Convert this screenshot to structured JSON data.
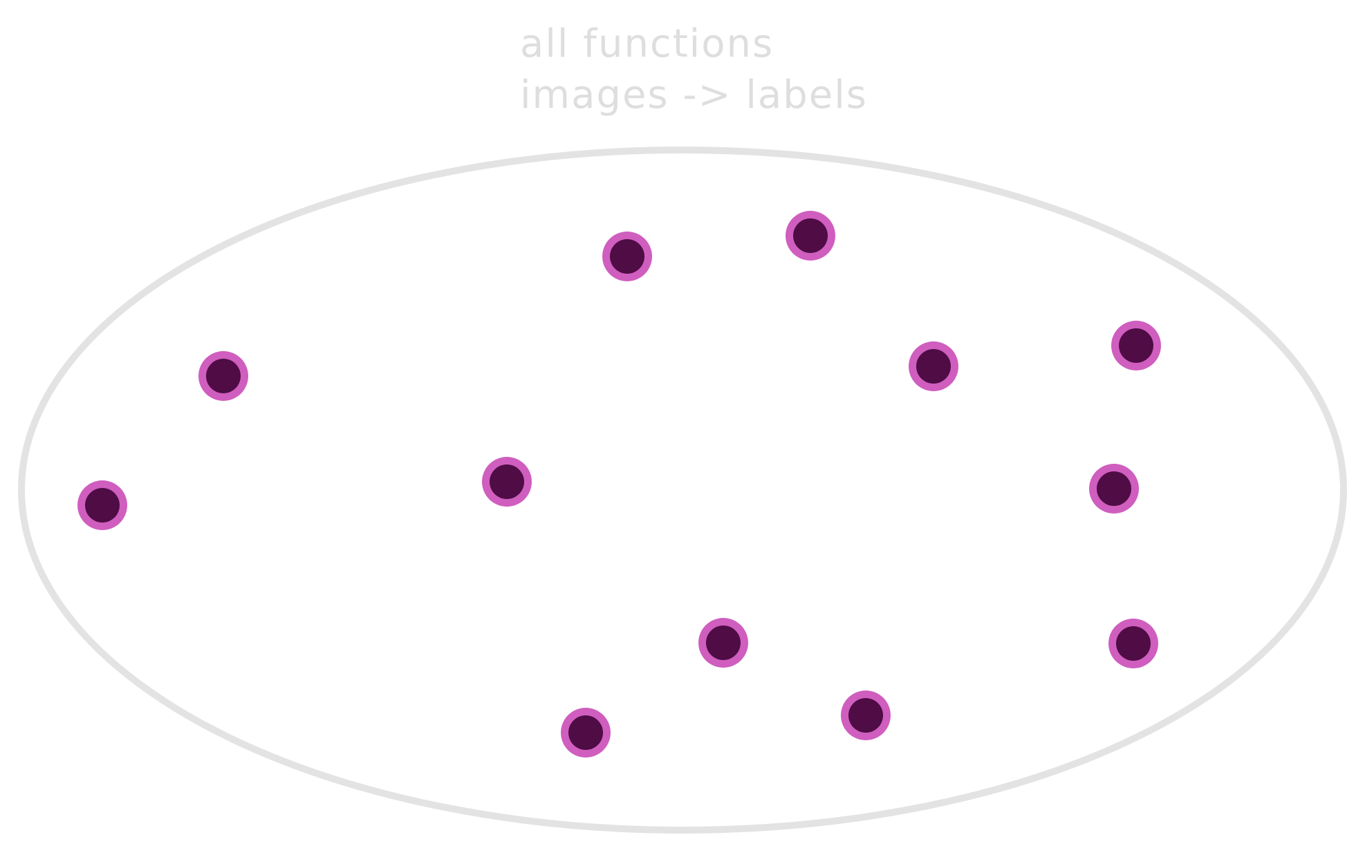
{
  "diagram": {
    "title_lines": [
      "all functions",
      "images -> labels"
    ],
    "set_shape": "ellipse",
    "points_count": 12,
    "colors": {
      "background": "#ffffff",
      "outline": "#e3e3e3",
      "title": "#dedede",
      "point_fill": "#4f0c45",
      "point_ring": "#cf5ebf"
    }
  }
}
